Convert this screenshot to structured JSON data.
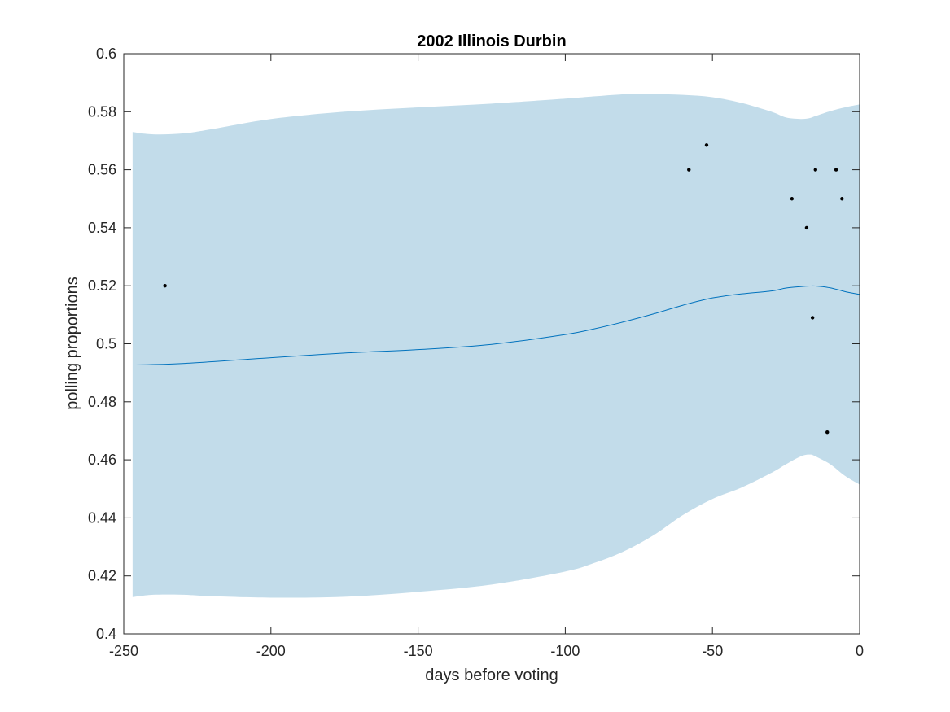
{
  "chart_data": {
    "type": "line",
    "title": "2002 Illinois Durbin",
    "xlabel": "days before voting",
    "ylabel": "polling proportions",
    "xlim": [
      -250,
      0
    ],
    "ylim": [
      0.4,
      0.6
    ],
    "xticks": [
      -250,
      -200,
      -150,
      -100,
      -50,
      0
    ],
    "xtick_labels": [
      "-250",
      "-200",
      "-150",
      "-100",
      "-50",
      "0"
    ],
    "yticks": [
      0.4,
      0.42,
      0.44,
      0.46,
      0.48,
      0.5,
      0.52,
      0.54,
      0.56,
      0.58,
      0.6
    ],
    "ytick_labels": [
      "0.4",
      "0.42",
      "0.44",
      "0.46",
      "0.48",
      "0.5",
      "0.52",
      "0.54",
      "0.56",
      "0.58",
      "0.6"
    ],
    "grid": false,
    "colors": {
      "band": "#c2dcea",
      "line": "#0072bd",
      "points": "#000000",
      "axes": "#262626"
    },
    "band": {
      "x": [
        -247,
        -240,
        -230,
        -220,
        -200,
        -175,
        -150,
        -125,
        -100,
        -90,
        -80,
        -70,
        -60,
        -50,
        -40,
        -30,
        -25,
        -20,
        -17,
        -15,
        -10,
        -5,
        0
      ],
      "upper": [
        0.573,
        0.5722,
        0.5725,
        0.574,
        0.5775,
        0.58,
        0.5815,
        0.5828,
        0.5845,
        0.5853,
        0.586,
        0.586,
        0.5858,
        0.585,
        0.583,
        0.58,
        0.578,
        0.5775,
        0.5778,
        0.5785,
        0.5802,
        0.5815,
        0.5825
      ],
      "lower": [
        0.4127,
        0.4135,
        0.4135,
        0.413,
        0.4125,
        0.4128,
        0.4145,
        0.417,
        0.4215,
        0.4245,
        0.4285,
        0.434,
        0.441,
        0.4465,
        0.4505,
        0.4555,
        0.4585,
        0.4612,
        0.4618,
        0.4612,
        0.4585,
        0.4545,
        0.4515
      ]
    },
    "series": [
      {
        "x": [
          -247,
          -230,
          -200,
          -175,
          -150,
          -125,
          -100,
          -90,
          -80,
          -70,
          -60,
          -50,
          -40,
          -30,
          -25,
          -20,
          -17,
          -15,
          -10,
          -5,
          0
        ],
        "values": [
          0.4927,
          0.4932,
          0.4952,
          0.4968,
          0.498,
          0.4998,
          0.5032,
          0.5052,
          0.5076,
          0.5103,
          0.5133,
          0.5158,
          0.5172,
          0.5182,
          0.5192,
          0.5197,
          0.5199,
          0.5199,
          0.5193,
          0.518,
          0.517
        ]
      }
    ],
    "points": {
      "x": [
        -236,
        -58,
        -52,
        -23,
        -18,
        -16,
        -15,
        -11,
        -8,
        -6
      ],
      "y": [
        0.52,
        0.56,
        0.5685,
        0.55,
        0.54,
        0.509,
        0.56,
        0.4695,
        0.56,
        0.55
      ]
    }
  }
}
